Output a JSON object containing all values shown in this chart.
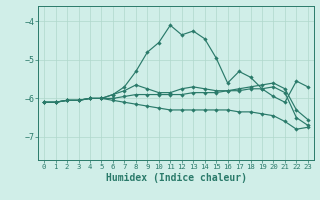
{
  "xlabel": "Humidex (Indice chaleur)",
  "ylabel": "",
  "background_color": "#d0eee8",
  "grid_color": "#b0d8cc",
  "line_color": "#2a7a6a",
  "xlim": [
    -0.5,
    23.5
  ],
  "ylim": [
    -7.6,
    -3.6
  ],
  "yticks": [
    -7,
    -6,
    -5,
    -4
  ],
  "xticks": [
    0,
    1,
    2,
    3,
    4,
    5,
    6,
    7,
    8,
    9,
    10,
    11,
    12,
    13,
    14,
    15,
    16,
    17,
    18,
    19,
    20,
    21,
    22,
    23
  ],
  "series": [
    [
      -6.1,
      -6.1,
      -6.05,
      -6.05,
      -6.0,
      -6.0,
      -5.9,
      -5.7,
      -5.3,
      -4.8,
      -4.55,
      -4.1,
      -4.35,
      -4.25,
      -4.45,
      -4.95,
      -5.6,
      -5.3,
      -5.45,
      -5.75,
      -5.95,
      -6.1,
      -5.55,
      -5.7
    ],
    [
      -6.1,
      -6.1,
      -6.05,
      -6.05,
      -6.0,
      -6.0,
      -5.9,
      -5.8,
      -5.65,
      -5.75,
      -5.85,
      -5.85,
      -5.75,
      -5.7,
      -5.75,
      -5.8,
      -5.8,
      -5.75,
      -5.7,
      -5.65,
      -5.6,
      -5.75,
      -6.3,
      -6.55
    ],
    [
      -6.1,
      -6.1,
      -6.05,
      -6.05,
      -6.0,
      -6.0,
      -6.0,
      -5.95,
      -5.9,
      -5.9,
      -5.9,
      -5.9,
      -5.9,
      -5.85,
      -5.85,
      -5.85,
      -5.8,
      -5.8,
      -5.75,
      -5.75,
      -5.7,
      -5.85,
      -6.5,
      -6.7
    ],
    [
      -6.1,
      -6.1,
      -6.05,
      -6.05,
      -6.0,
      -6.0,
      -6.05,
      -6.1,
      -6.15,
      -6.2,
      -6.25,
      -6.3,
      -6.3,
      -6.3,
      -6.3,
      -6.3,
      -6.3,
      -6.35,
      -6.35,
      -6.4,
      -6.45,
      -6.6,
      -6.8,
      -6.75
    ]
  ]
}
